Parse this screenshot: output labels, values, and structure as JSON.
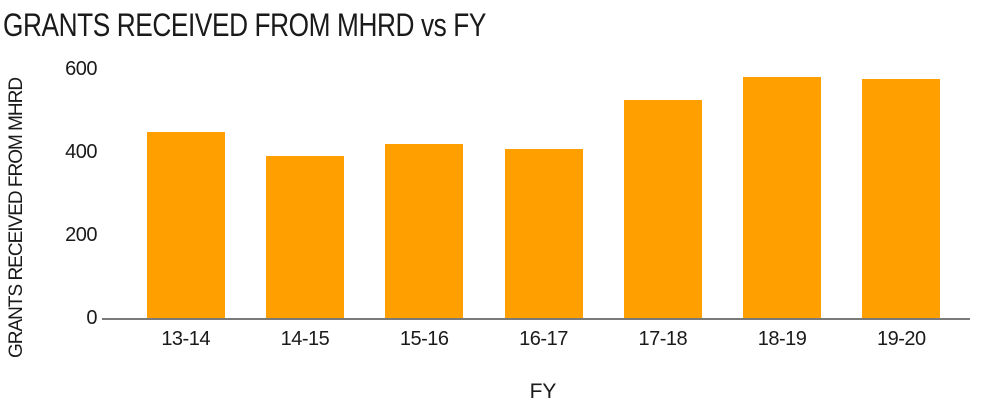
{
  "title": "GRANTS RECEIVED FROM MHRD vs FY",
  "colors": {
    "bar": "#FFA000",
    "axis_line": "#7A7A7A",
    "text": "#1A1A1A",
    "background": "#FFFFFF"
  },
  "chart_data": {
    "type": "bar",
    "title": "GRANTS RECEIVED FROM MHRD vs FY",
    "xlabel": "FY",
    "ylabel": "GRANTS RECEIVED FROM MHRD",
    "categories": [
      "13-14",
      "14-15",
      "15-16",
      "16-17",
      "17-18",
      "18-19",
      "19-20"
    ],
    "values": [
      447,
      390,
      420,
      407,
      525,
      580,
      575
    ],
    "ylim": [
      0,
      600
    ],
    "yticks": [
      0,
      200,
      400,
      600
    ],
    "grid": false,
    "legend": false,
    "bar_color": "#FFA000"
  }
}
